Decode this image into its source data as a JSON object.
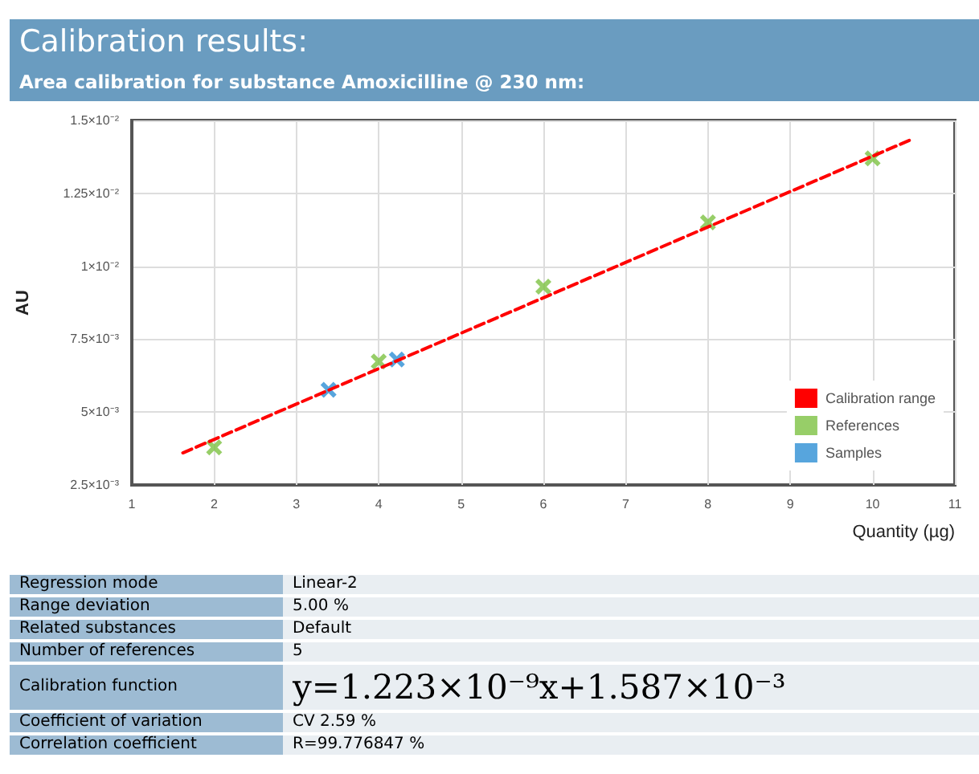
{
  "chart_data": [
    {
      "type": "scatter",
      "title": "Calibration results:",
      "subtitle": "Area calibration for substance Amoxicilline @ 230 nm:",
      "xlabel": "Quantity (µg)",
      "ylabel": "AU",
      "xlim": [
        1,
        11
      ],
      "xticks": [
        1,
        2,
        3,
        4,
        5,
        6,
        7,
        8,
        9,
        10,
        11
      ],
      "ylim": [
        0.0025,
        0.015
      ],
      "yticks": [
        {
          "value": 0.0025,
          "label": "2.5×10⁻³"
        },
        {
          "value": 0.005,
          "label": "5×10⁻³"
        },
        {
          "value": 0.0075,
          "label": "7.5×10⁻³"
        },
        {
          "value": 0.01,
          "label": "1×10⁻²"
        },
        {
          "value": 0.0125,
          "label": "1.25×10⁻²"
        },
        {
          "value": 0.015,
          "label": "1.5×10⁻²"
        }
      ],
      "grid": true,
      "legend": "bottom right",
      "series": [
        {
          "name": "Calibration range",
          "type": "line",
          "color": "#ff0000",
          "line_style": "dashed",
          "marker": "none",
          "x": [
            1.62,
            10.49
          ],
          "values": [
            0.0036,
            0.01437
          ]
        },
        {
          "name": "References",
          "color": "#7dc242",
          "marker": "cross",
          "x": [
            2,
            4,
            6,
            8,
            10
          ],
          "values": [
            0.00379,
            0.00673,
            0.0093,
            0.0115,
            0.0137
          ]
        },
        {
          "name": "Samples",
          "color": "#2d8fd5",
          "marker": "cross",
          "x": [
            3.39,
            4.22
          ],
          "values": [
            0.00576,
            0.0068
          ]
        }
      ]
    },
    {
      "type": "other",
      "annotations": [
        "Regression mode",
        "Linear-2",
        "Range deviation",
        "5.00 %",
        "Related substances",
        "Default",
        "Number of references",
        "5",
        "Calibration function",
        "y=1.223×10⁻⁹x+1.587×10⁻³",
        "Coefficient of variation",
        "CV 2.59 %",
        "Correlation coefficient",
        "R=99.776847 %"
      ]
    }
  ]
}
